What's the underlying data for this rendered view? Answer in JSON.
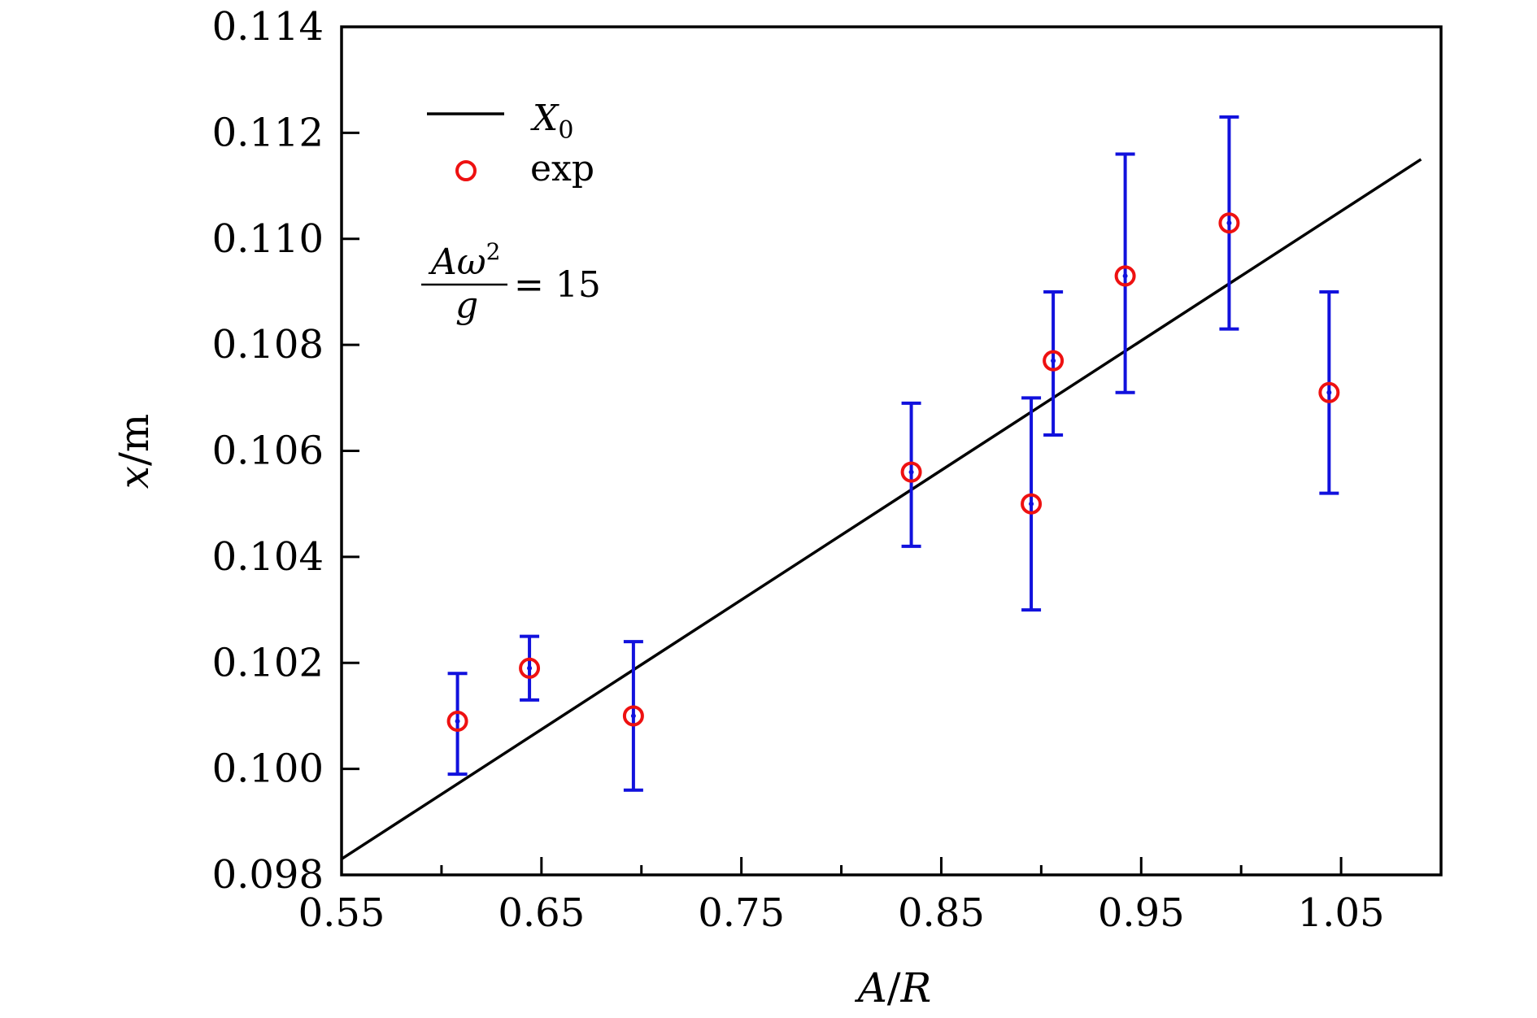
{
  "chart_data": {
    "type": "scatter",
    "title": "",
    "xlabel": "A/R",
    "xlabel_parts": {
      "a": "A",
      "slash": "/",
      "b": "R"
    },
    "ylabel": "x/m",
    "ylabel_parts": {
      "a": "x",
      "slash": "/",
      "b": "m"
    },
    "xlim": [
      0.55,
      1.1
    ],
    "ylim": [
      0.098,
      0.114
    ],
    "xticks": [
      0.55,
      0.65,
      0.75,
      0.85,
      0.95,
      1.05
    ],
    "xtick_labels": [
      "0.55",
      "0.65",
      "0.75",
      "0.85",
      "0.95",
      "1.05"
    ],
    "xticks_minor": [
      0.6,
      0.7,
      0.8,
      0.9,
      1.0
    ],
    "yticks": [
      0.098,
      0.1,
      0.102,
      0.104,
      0.106,
      0.108,
      0.11,
      0.112,
      0.114
    ],
    "ytick_labels": [
      "0.098",
      "0.100",
      "0.102",
      "0.104",
      "0.106",
      "0.108",
      "0.110",
      "0.112",
      "0.114"
    ],
    "grid": false,
    "legend_position": "top-left",
    "series": [
      {
        "name": "X0",
        "legend_main": "X",
        "legend_sub": "0",
        "kind": "line",
        "color": "#000000",
        "x": [
          0.55,
          1.09
        ],
        "y": [
          0.0983,
          0.1115
        ]
      },
      {
        "name": "exp",
        "legend_main": "exp",
        "kind": "scatter",
        "marker_color": "#ee1111",
        "errorbar_color": "#1111dd",
        "center_color": "#1111dd",
        "x": [
          0.608,
          0.644,
          0.696,
          0.835,
          0.895,
          0.906,
          0.942,
          0.994,
          1.044
        ],
        "y": [
          0.1009,
          0.1019,
          0.101,
          0.1056,
          0.105,
          0.1077,
          0.1093,
          0.1103,
          0.1071
        ],
        "yerr_low": [
          0.0999,
          0.1013,
          0.0996,
          0.1042,
          0.103,
          0.1063,
          0.1071,
          0.1083,
          0.1052
        ],
        "yerr_high": [
          0.1018,
          0.1025,
          0.1024,
          0.1069,
          0.107,
          0.109,
          0.1116,
          0.1123,
          0.109
        ]
      }
    ],
    "annotation": {
      "numerator": "Aω",
      "superscript": "2",
      "denominator": "g",
      "equals": "= 15"
    }
  }
}
